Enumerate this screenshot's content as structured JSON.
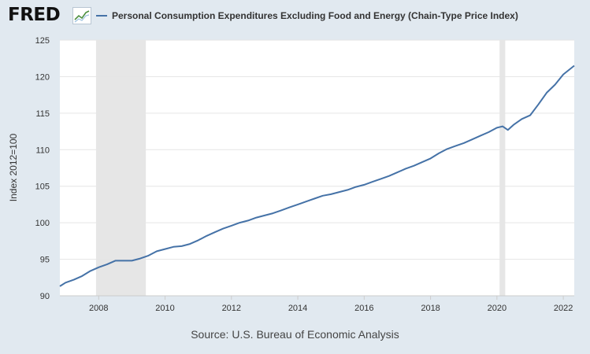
{
  "header": {
    "brand": "FRED",
    "brand_icon": "trend-line-icon",
    "legend_label": "Personal Consumption Expenditures Excluding Food and Energy (Chain-Type Price Index)"
  },
  "source": "Source: U.S. Bureau of Economic Analysis",
  "colors": {
    "series": "#4572a7",
    "recession": "#e6e6e6",
    "grid": "#e5e5e5",
    "plot_bg": "#ffffff",
    "page_bg": "#e1e9f0"
  },
  "chart_data": {
    "type": "line",
    "title": "",
    "xlabel": "",
    "ylabel": "Index 2012=100",
    "xlim": [
      2006.83,
      2022.33
    ],
    "ylim": [
      90,
      125
    ],
    "yticks": [
      90,
      95,
      100,
      105,
      110,
      115,
      120,
      125
    ],
    "xticks": [
      2008,
      2010,
      2012,
      2014,
      2016,
      2018,
      2020,
      2022
    ],
    "grid": true,
    "legend": "top-left",
    "recessions": [
      [
        2007.92,
        2009.42
      ],
      [
        2020.08,
        2020.25
      ]
    ],
    "series": [
      {
        "name": "Personal Consumption Expenditures Excluding Food and Energy (Chain-Type Price Index)",
        "x": [
          2006.83,
          2007.0,
          2007.25,
          2007.5,
          2007.75,
          2008.0,
          2008.25,
          2008.5,
          2008.75,
          2009.0,
          2009.25,
          2009.5,
          2009.75,
          2010.0,
          2010.25,
          2010.5,
          2010.75,
          2011.0,
          2011.25,
          2011.5,
          2011.75,
          2012.0,
          2012.25,
          2012.5,
          2012.75,
          2013.0,
          2013.25,
          2013.5,
          2013.75,
          2014.0,
          2014.25,
          2014.5,
          2014.75,
          2015.0,
          2015.25,
          2015.5,
          2015.75,
          2016.0,
          2016.25,
          2016.5,
          2016.75,
          2017.0,
          2017.25,
          2017.5,
          2017.75,
          2018.0,
          2018.25,
          2018.5,
          2018.75,
          2019.0,
          2019.25,
          2019.5,
          2019.75,
          2020.0,
          2020.17,
          2020.33,
          2020.5,
          2020.75,
          2021.0,
          2021.25,
          2021.5,
          2021.75,
          2022.0,
          2022.33
        ],
        "values": [
          91.3,
          91.8,
          92.2,
          92.7,
          93.4,
          93.9,
          94.3,
          94.8,
          94.8,
          94.8,
          95.1,
          95.5,
          96.1,
          96.4,
          96.7,
          96.8,
          97.1,
          97.6,
          98.2,
          98.7,
          99.2,
          99.6,
          100.0,
          100.3,
          100.7,
          101.0,
          101.3,
          101.7,
          102.1,
          102.5,
          102.9,
          103.3,
          103.7,
          103.9,
          104.2,
          104.5,
          104.9,
          105.2,
          105.6,
          106.0,
          106.4,
          106.9,
          107.4,
          107.8,
          108.3,
          108.8,
          109.5,
          110.1,
          110.5,
          110.9,
          111.4,
          111.9,
          112.4,
          113.0,
          113.2,
          112.7,
          113.4,
          114.2,
          114.7,
          116.2,
          117.8,
          118.9,
          120.3,
          121.5
        ]
      }
    ]
  }
}
